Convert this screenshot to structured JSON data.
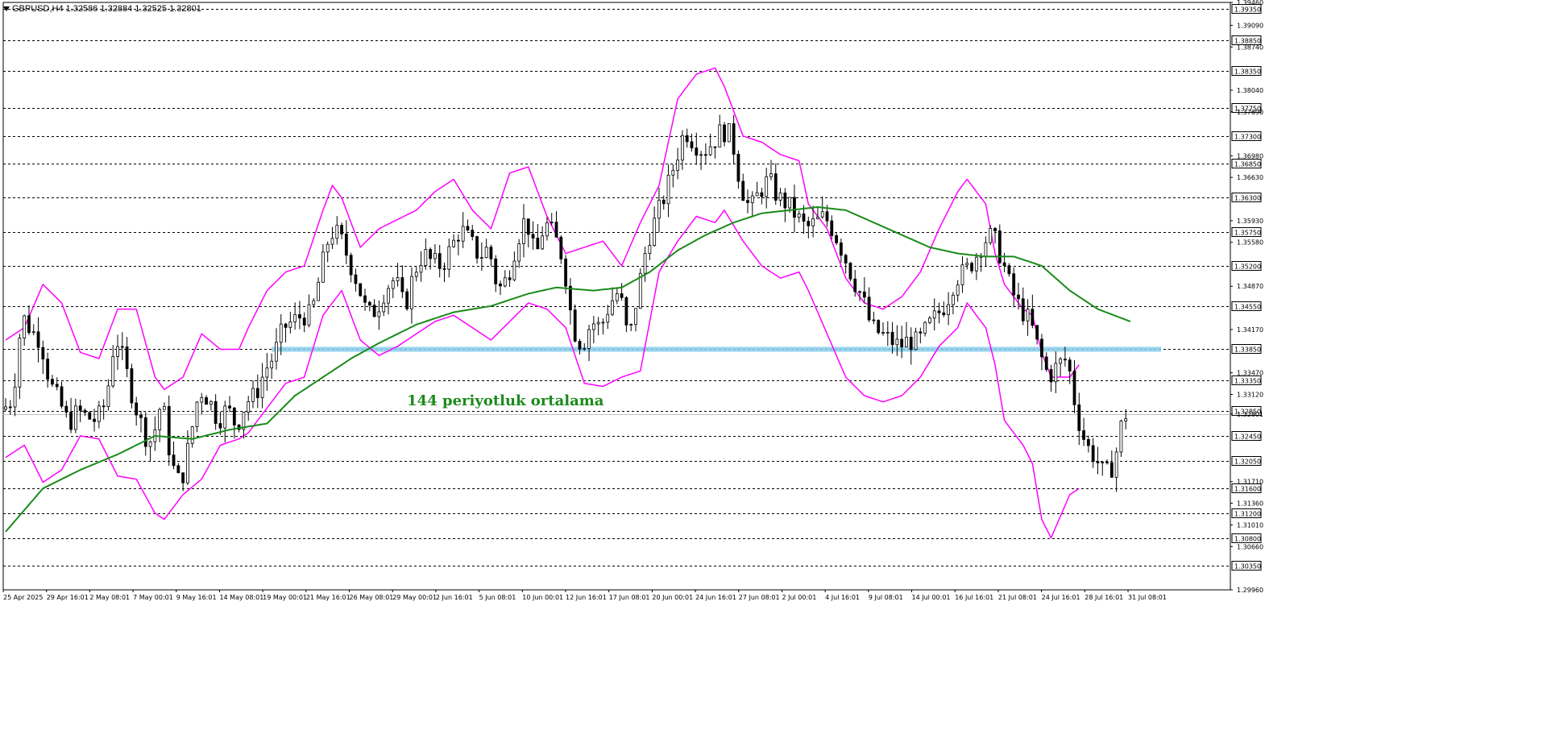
{
  "window": {
    "symbol_header": "GBPUSD,H4  1.32586 1.32884 1.32525 1.32801"
  },
  "colors": {
    "candles": "#000000",
    "bollinger": "#ff00ff",
    "ma": "#1a8a1a",
    "support_zone": "#87ceeb",
    "grid": "#000000",
    "annotation": "#1a8a1a"
  },
  "annotation": {
    "text": "144 periyotluk ortalama"
  },
  "chart_data": {
    "type": "candlestick",
    "title": "GBPUSD,H4",
    "ohlc_header": {
      "open": 1.32586,
      "high": 1.32884,
      "low": 1.32525,
      "close": 1.32801
    },
    "ylim": [
      1.2996,
      1.3946
    ],
    "x_tick_labels": [
      "25 Apr 2025",
      "29 Apr 16:01",
      "2 May 08:01",
      "7 May 00:01",
      "9 May 16:01",
      "14 May 08:01",
      "19 May 00:01",
      "21 May 16:01",
      "26 May 08:01",
      "29 May 00:01",
      "2 Jun 16:01",
      "5 Jun 08:01",
      "10 Jun 00:01",
      "12 Jun 16:01",
      "17 Jun 08:01",
      "20 Jun 00:01",
      "24 Jun 16:01",
      "27 Jun 08:01",
      "2 Jul 00:01",
      "4 Jul 16:01",
      "9 Jul 08:01",
      "14 Jul 00:01",
      "16 Jul 16:01",
      "21 Jul 08:01",
      "24 Jul 16:01",
      "28 Jul 16:01",
      "31 Jul 08:01"
    ],
    "y_tick_labels": [
      "1.39460",
      "1.39090",
      "1.38740",
      "1.38040",
      "1.37690",
      "1.36980",
      "1.36630",
      "1.35930",
      "1.35580",
      "1.34870",
      "1.34170",
      "1.33470",
      "1.33120",
      "1.32801",
      "1.31710",
      "1.31360",
      "1.31010",
      "1.30660",
      "1.29960"
    ],
    "horizontal_levels": [
      "1.39350",
      "1.38850",
      "1.38350",
      "1.37750",
      "1.37300",
      "1.36850",
      "1.36300",
      "1.35750",
      "1.35200",
      "1.34550",
      "1.33850",
      "1.33350",
      "1.32850",
      "1.32450",
      "1.32050",
      "1.31600",
      "1.31200",
      "1.30800",
      "1.30350"
    ],
    "support_zone": [
      1.3381,
      1.3389
    ],
    "current_price": 1.32801,
    "ma_period": 144,
    "price_path": [
      [
        0,
        1.3288
      ],
      [
        2,
        1.3305
      ],
      [
        4,
        1.344
      ],
      [
        6,
        1.3415
      ],
      [
        8,
        1.34
      ],
      [
        10,
        1.333
      ],
      [
        12,
        1.33
      ],
      [
        14,
        1.3265
      ],
      [
        16,
        1.3285
      ],
      [
        18,
        1.3275
      ],
      [
        20,
        1.327
      ],
      [
        22,
        1.33
      ],
      [
        24,
        1.341
      ],
      [
        26,
        1.336
      ],
      [
        28,
        1.33
      ],
      [
        30,
        1.3255
      ],
      [
        31,
        1.3235
      ],
      [
        32,
        1.324
      ],
      [
        34,
        1.3305
      ],
      [
        36,
        1.32
      ],
      [
        38,
        1.3165
      ],
      [
        40,
        1.324
      ],
      [
        42,
        1.332
      ],
      [
        44,
        1.3305
      ],
      [
        46,
        1.327
      ],
      [
        48,
        1.329
      ],
      [
        50,
        1.326
      ],
      [
        52,
        1.33
      ],
      [
        54,
        1.331
      ],
      [
        56,
        1.335
      ],
      [
        58,
        1.3375
      ],
      [
        60,
        1.342
      ],
      [
        62,
        1.343
      ],
      [
        64,
        1.344
      ],
      [
        66,
        1.344
      ],
      [
        68,
        1.351
      ],
      [
        70,
        1.3575
      ],
      [
        72,
        1.357
      ],
      [
        74,
        1.353
      ],
      [
        76,
        1.349
      ],
      [
        78,
        1.344
      ],
      [
        80,
        1.345
      ],
      [
        82,
        1.3485
      ],
      [
        84,
        1.35
      ],
      [
        86,
        1.345
      ],
      [
        88,
        1.351
      ],
      [
        90,
        1.354
      ],
      [
        92,
        1.3525
      ],
      [
        94,
        1.352
      ],
      [
        96,
        1.355
      ],
      [
        98,
        1.358
      ],
      [
        100,
        1.356
      ],
      [
        102,
        1.3535
      ],
      [
        104,
        1.355
      ],
      [
        106,
        1.348
      ],
      [
        108,
        1.35
      ],
      [
        110,
        1.356
      ],
      [
        112,
        1.36
      ],
      [
        114,
        1.353
      ],
      [
        116,
        1.359
      ],
      [
        118,
        1.357
      ],
      [
        120,
        1.353
      ],
      [
        122,
        1.342
      ],
      [
        124,
        1.339
      ],
      [
        126,
        1.343
      ],
      [
        128,
        1.342
      ],
      [
        130,
        1.346
      ],
      [
        132,
        1.348
      ],
      [
        134,
        1.3395
      ],
      [
        136,
        1.348
      ],
      [
        138,
        1.356
      ],
      [
        140,
        1.36
      ],
      [
        142,
        1.364
      ],
      [
        144,
        1.369
      ],
      [
        146,
        1.374
      ],
      [
        148,
        1.372
      ],
      [
        150,
        1.3705
      ],
      [
        152,
        1.372
      ],
      [
        154,
        1.374
      ],
      [
        156,
        1.373
      ],
      [
        158,
        1.365
      ],
      [
        160,
        1.361
      ],
      [
        162,
        1.364
      ],
      [
        164,
        1.366
      ],
      [
        166,
        1.363
      ],
      [
        168,
        1.362
      ],
      [
        170,
        1.36
      ],
      [
        172,
        1.358
      ],
      [
        174,
        1.359
      ],
      [
        176,
        1.36
      ],
      [
        178,
        1.3575
      ],
      [
        180,
        1.354
      ],
      [
        182,
        1.35
      ],
      [
        184,
        1.347
      ],
      [
        186,
        1.342
      ],
      [
        188,
        1.341
      ],
      [
        190,
        1.34
      ],
      [
        192,
        1.339
      ],
      [
        194,
        1.34
      ],
      [
        196,
        1.3395
      ],
      [
        198,
        1.342
      ],
      [
        200,
        1.344
      ],
      [
        202,
        1.346
      ],
      [
        204,
        1.35
      ],
      [
        206,
        1.351
      ],
      [
        208,
        1.353
      ],
      [
        210,
        1.356
      ],
      [
        212,
        1.357
      ],
      [
        214,
        1.353
      ],
      [
        216,
        1.348
      ],
      [
        218,
        1.345
      ],
      [
        220,
        1.343
      ],
      [
        222,
        1.338
      ],
      [
        224,
        1.334
      ],
      [
        226,
        1.336
      ],
      [
        228,
        1.337
      ],
      [
        230,
        1.328
      ],
      [
        232,
        1.323
      ],
      [
        234,
        1.321
      ],
      [
        236,
        1.318
      ],
      [
        238,
        1.32
      ],
      [
        240,
        1.328
      ],
      [
        241,
        1.328
      ]
    ],
    "ma_path": [
      [
        0,
        1.309
      ],
      [
        8,
        1.316
      ],
      [
        16,
        1.319
      ],
      [
        24,
        1.3215
      ],
      [
        32,
        1.3245
      ],
      [
        40,
        1.324
      ],
      [
        48,
        1.3255
      ],
      [
        56,
        1.3265
      ],
      [
        62,
        1.331
      ],
      [
        68,
        1.334
      ],
      [
        74,
        1.337
      ],
      [
        80,
        1.3395
      ],
      [
        88,
        1.3425
      ],
      [
        96,
        1.3445
      ],
      [
        104,
        1.3455
      ],
      [
        112,
        1.3475
      ],
      [
        118,
        1.3485
      ],
      [
        126,
        1.348
      ],
      [
        132,
        1.3485
      ],
      [
        138,
        1.351
      ],
      [
        144,
        1.3545
      ],
      [
        150,
        1.357
      ],
      [
        156,
        1.359
      ],
      [
        162,
        1.3605
      ],
      [
        168,
        1.361
      ],
      [
        174,
        1.3615
      ],
      [
        180,
        1.361
      ],
      [
        186,
        1.359
      ],
      [
        192,
        1.357
      ],
      [
        198,
        1.355
      ],
      [
        204,
        1.354
      ],
      [
        210,
        1.3535
      ],
      [
        216,
        1.3535
      ],
      [
        222,
        1.352
      ],
      [
        228,
        1.348
      ],
      [
        234,
        1.345
      ],
      [
        241,
        1.343
      ]
    ],
    "bb_upper": [
      [
        0,
        1.34
      ],
      [
        4,
        1.342
      ],
      [
        8,
        1.349
      ],
      [
        12,
        1.346
      ],
      [
        16,
        1.338
      ],
      [
        20,
        1.337
      ],
      [
        24,
        1.345
      ],
      [
        28,
        1.345
      ],
      [
        32,
        1.334
      ],
      [
        34,
        1.332
      ],
      [
        38,
        1.334
      ],
      [
        42,
        1.341
      ],
      [
        46,
        1.3385
      ],
      [
        50,
        1.3385
      ],
      [
        52,
        1.342
      ],
      [
        56,
        1.348
      ],
      [
        60,
        1.351
      ],
      [
        64,
        1.352
      ],
      [
        68,
        1.361
      ],
      [
        70,
        1.365
      ],
      [
        72,
        1.363
      ],
      [
        76,
        1.355
      ],
      [
        80,
        1.358
      ],
      [
        84,
        1.3595
      ],
      [
        88,
        1.361
      ],
      [
        92,
        1.364
      ],
      [
        96,
        1.366
      ],
      [
        100,
        1.361
      ],
      [
        104,
        1.358
      ],
      [
        108,
        1.367
      ],
      [
        112,
        1.368
      ],
      [
        116,
        1.36
      ],
      [
        120,
        1.354
      ],
      [
        124,
        1.355
      ],
      [
        128,
        1.356
      ],
      [
        132,
        1.352
      ],
      [
        136,
        1.359
      ],
      [
        140,
        1.365
      ],
      [
        144,
        1.379
      ],
      [
        148,
        1.383
      ],
      [
        152,
        1.384
      ],
      [
        154,
        1.381
      ],
      [
        158,
        1.373
      ],
      [
        162,
        1.372
      ],
      [
        166,
        1.37
      ],
      [
        170,
        1.369
      ],
      [
        172,
        1.362
      ],
      [
        176,
        1.358
      ],
      [
        180,
        1.35
      ],
      [
        184,
        1.346
      ],
      [
        188,
        1.345
      ],
      [
        192,
        1.347
      ],
      [
        196,
        1.351
      ],
      [
        200,
        1.358
      ],
      [
        204,
        1.364
      ],
      [
        206,
        1.366
      ],
      [
        210,
        1.362
      ],
      [
        212,
        1.354
      ],
      [
        214,
        1.349
      ],
      [
        218,
        1.345
      ],
      [
        220,
        1.344
      ],
      [
        222,
        1.338
      ],
      [
        224,
        1.334
      ],
      [
        228,
        1.334
      ],
      [
        230,
        1.336
      ]
    ],
    "bb_lower": [
      [
        0,
        1.321
      ],
      [
        4,
        1.323
      ],
      [
        8,
        1.317
      ],
      [
        12,
        1.319
      ],
      [
        16,
        1.3245
      ],
      [
        20,
        1.324
      ],
      [
        24,
        1.318
      ],
      [
        28,
        1.3175
      ],
      [
        32,
        1.312
      ],
      [
        34,
        1.311
      ],
      [
        38,
        1.315
      ],
      [
        42,
        1.3175
      ],
      [
        46,
        1.323
      ],
      [
        50,
        1.324
      ],
      [
        52,
        1.325
      ],
      [
        56,
        1.329
      ],
      [
        60,
        1.333
      ],
      [
        64,
        1.334
      ],
      [
        68,
        1.344
      ],
      [
        70,
        1.346
      ],
      [
        72,
        1.348
      ],
      [
        76,
        1.34
      ],
      [
        80,
        1.3375
      ],
      [
        84,
        1.339
      ],
      [
        88,
        1.341
      ],
      [
        92,
        1.343
      ],
      [
        96,
        1.344
      ],
      [
        100,
        1.342
      ],
      [
        104,
        1.34
      ],
      [
        108,
        1.343
      ],
      [
        112,
        1.346
      ],
      [
        116,
        1.345
      ],
      [
        120,
        1.342
      ],
      [
        124,
        1.333
      ],
      [
        128,
        1.3325
      ],
      [
        132,
        1.334
      ],
      [
        136,
        1.335
      ],
      [
        140,
        1.351
      ],
      [
        144,
        1.356
      ],
      [
        148,
        1.36
      ],
      [
        152,
        1.359
      ],
      [
        154,
        1.361
      ],
      [
        158,
        1.356
      ],
      [
        162,
        1.352
      ],
      [
        166,
        1.35
      ],
      [
        170,
        1.351
      ],
      [
        172,
        1.348
      ],
      [
        176,
        1.341
      ],
      [
        180,
        1.334
      ],
      [
        184,
        1.331
      ],
      [
        188,
        1.33
      ],
      [
        192,
        1.331
      ],
      [
        196,
        1.334
      ],
      [
        200,
        1.339
      ],
      [
        204,
        1.342
      ],
      [
        206,
        1.346
      ],
      [
        210,
        1.342
      ],
      [
        212,
        1.336
      ],
      [
        214,
        1.327
      ],
      [
        218,
        1.323
      ],
      [
        220,
        1.32
      ],
      [
        222,
        1.311
      ],
      [
        224,
        1.308
      ],
      [
        228,
        1.315
      ],
      [
        230,
        1.316
      ]
    ]
  }
}
